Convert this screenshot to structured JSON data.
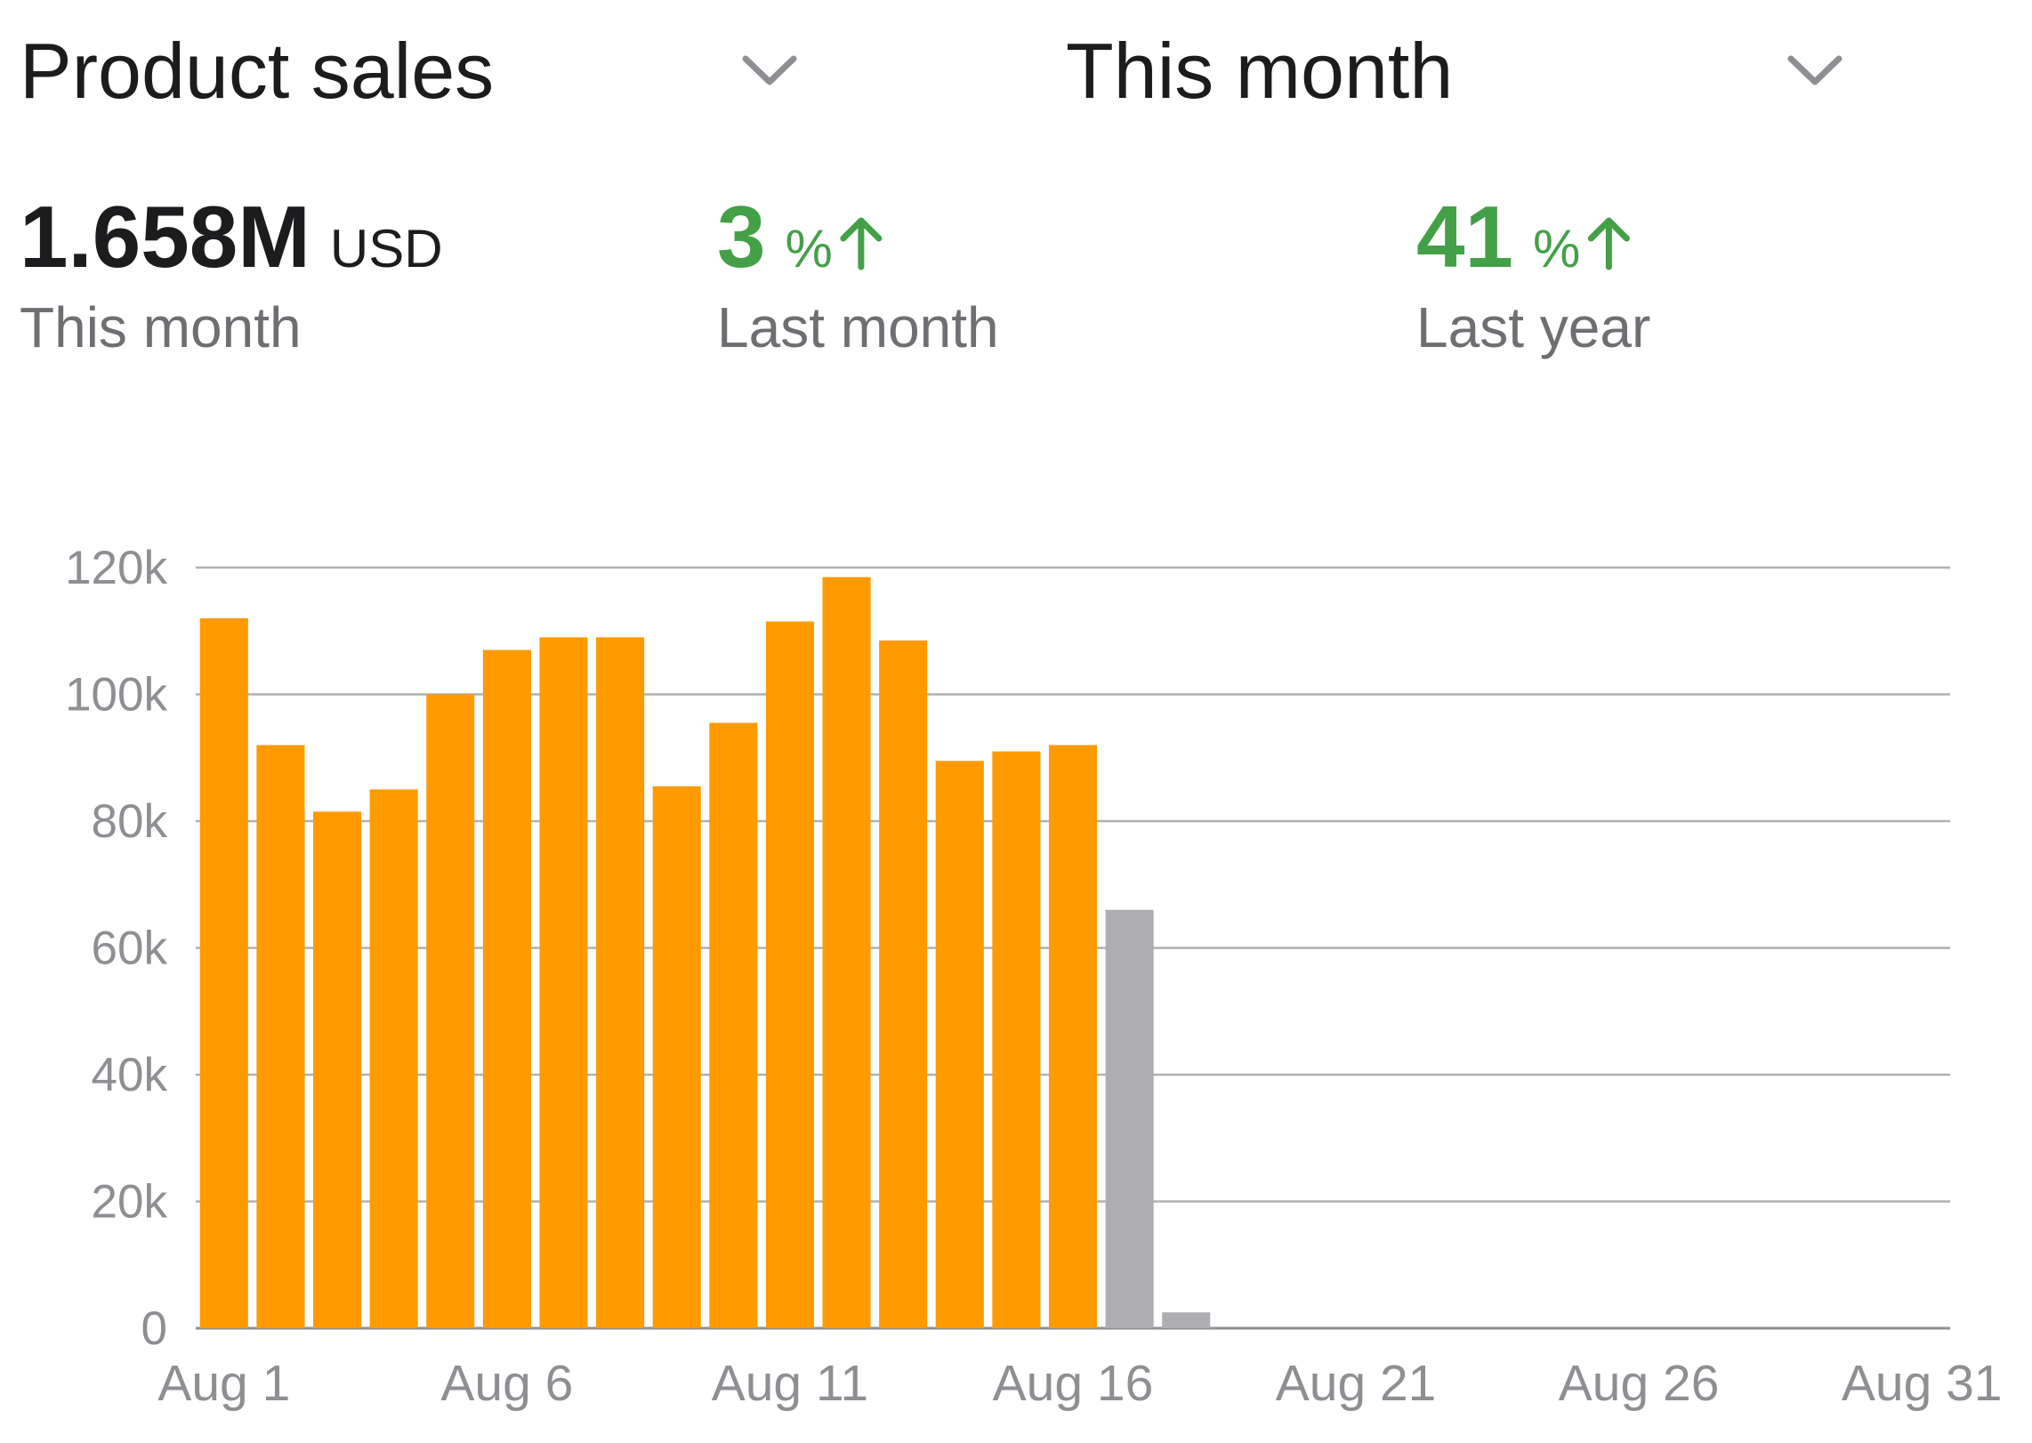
{
  "header": {
    "metric_select": "Product sales",
    "period_select": "This month"
  },
  "metrics": [
    {
      "value": "1.658M",
      "unit": "USD",
      "label": "This month"
    },
    {
      "value": "3",
      "unit": "%",
      "label": "Last month"
    },
    {
      "value": "41",
      "unit": "%",
      "label": "Last year"
    }
  ],
  "chart_data": {
    "type": "bar",
    "categories": [
      "Aug 1",
      null,
      null,
      null,
      null,
      "Aug 6",
      null,
      null,
      null,
      null,
      "Aug 11",
      null,
      null,
      null,
      null,
      "Aug 16",
      null,
      null,
      null,
      null,
      "Aug 21",
      null,
      null,
      null,
      null,
      "Aug 26",
      null,
      null,
      null,
      null,
      "Aug 31"
    ],
    "values": [
      112000,
      92000,
      81500,
      85000,
      100000,
      107000,
      109000,
      109000,
      85500,
      95500,
      111500,
      118500,
      108500,
      89500,
      91000,
      92000,
      66000,
      2500,
      null,
      null,
      null,
      null,
      null,
      null,
      null,
      null,
      null,
      null,
      null,
      null,
      null
    ],
    "colors": [
      "#ff9a00",
      "#ff9a00",
      "#ff9a00",
      "#ff9a00",
      "#ff9a00",
      "#ff9a00",
      "#ff9a00",
      "#ff9a00",
      "#ff9a00",
      "#ff9a00",
      "#ff9a00",
      "#ff9a00",
      "#ff9a00",
      "#ff9a00",
      "#ff9a00",
      "#ff9a00",
      "#aeaeb2",
      "#aeaeb2",
      null,
      null,
      null,
      null,
      null,
      null,
      null,
      null,
      null,
      null,
      null,
      null,
      null
    ],
    "ylim": [
      0,
      120000
    ],
    "yticks": [
      0,
      {
        "value": 20000,
        "label": "20k"
      },
      {
        "value": 40000,
        "label": "40k"
      },
      {
        "value": 60000,
        "label": "60k"
      },
      {
        "value": 80000,
        "label": "80k"
      },
      {
        "value": 100000,
        "label": "100k"
      },
      {
        "value": 120000,
        "label": "120k"
      }
    ],
    "grid": true
  }
}
